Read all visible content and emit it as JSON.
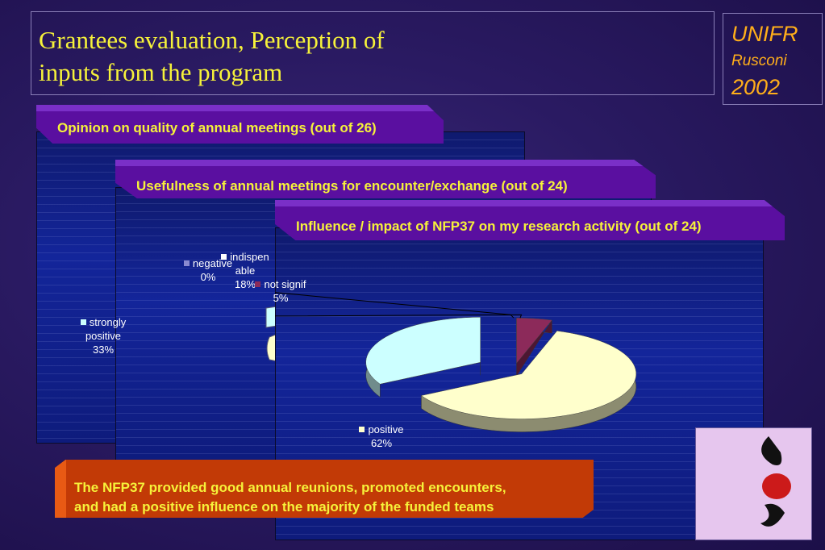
{
  "header": {
    "title_line1": "Grantees evaluation, Perception of",
    "title_line2": "inputs from the program"
  },
  "brand": {
    "line1": "UNIFR",
    "line2": "Rusconi",
    "line3": "2002"
  },
  "panels": {
    "meetings_quality": {
      "title": "Opinion on quality of annual meetings (out of 26)"
    },
    "meetings_usefulness": {
      "title": "Usefulness of annual meetings for encounter/exchange (out of 24)",
      "visible_legend": {
        "label_line1": "indispen",
        "label_line2": "able",
        "value": "18%"
      }
    }
  },
  "conclusion": {
    "line1": "The NFP37 provided good annual reunions, promoted encounters,",
    "line2": "and had a positive influence on the majority of the funded teams"
  },
  "chart_data": {
    "type": "pie",
    "title": "Influence / impact of NFP37 on my research activity (out of 24)",
    "unit": "%",
    "slices": [
      {
        "label_lines": [
          "negative"
        ],
        "value": 0,
        "display": "0%",
        "color": "#8a8ad0"
      },
      {
        "label_lines": [
          "not signif"
        ],
        "value": 5,
        "display": "5%",
        "color": "#8c2a5a"
      },
      {
        "label_lines": [
          "positive"
        ],
        "value": 62,
        "display": "62%",
        "color": "#ffffcc"
      },
      {
        "label_lines": [
          "strongly",
          "positive"
        ],
        "value": 33,
        "display": "33%",
        "color": "#ccffff"
      }
    ]
  },
  "colors": {
    "title_yellow": "#f6f23a",
    "brand_orange": "#ffae1a",
    "tab_purple": "#5a0fa0",
    "conclusion_orange": "#c23a06"
  }
}
